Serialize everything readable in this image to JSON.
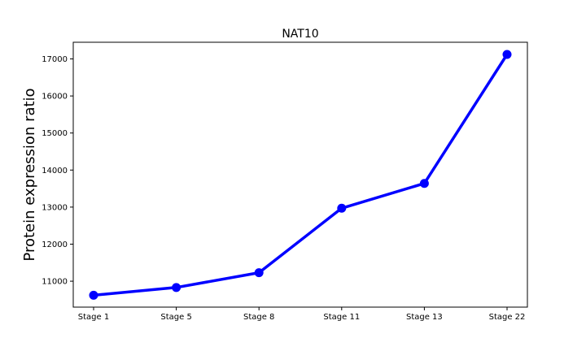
{
  "chart_data": {
    "type": "line",
    "title": "NAT10",
    "xlabel": "",
    "ylabel": "Protein expression ratio",
    "categories": [
      "Stage 1",
      "Stage 5",
      "Stage 8",
      "Stage 11",
      "Stage 13",
      "Stage 22"
    ],
    "series": [
      {
        "values": [
          10620,
          10830,
          11230,
          12970,
          13640,
          17120
        ]
      }
    ],
    "ylim": [
      10300,
      17450
    ],
    "yticks": [
      11000,
      12000,
      13000,
      14000,
      15000,
      16000,
      17000
    ],
    "grid": false,
    "legend": "none",
    "colors": {
      "line": "#0000ff",
      "marker": "#0000ff",
      "axes": "#000000",
      "background": "#ffffff"
    }
  }
}
